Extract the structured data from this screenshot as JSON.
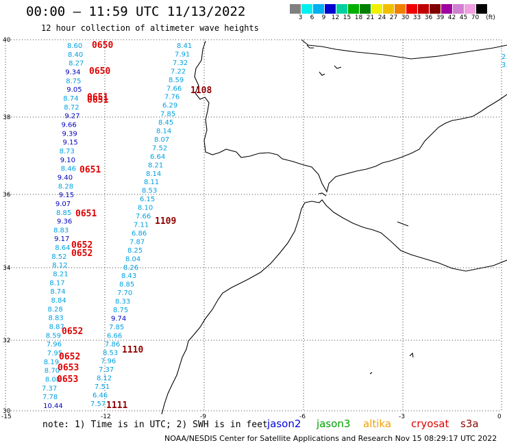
{
  "title": "00:00 – 11:59 UTC 11/13/2022",
  "subtitle": "12 hour collection of altimeter wave heights",
  "scale": {
    "unit": "(ft)",
    "labels": [
      "3",
      "6",
      "9",
      "12",
      "15",
      "18",
      "21",
      "24",
      "27",
      "30",
      "33",
      "36",
      "39",
      "42",
      "45",
      "70"
    ],
    "colors": [
      "#808080",
      "#00f0f0",
      "#00b0f0",
      "#0000d0",
      "#00d0a0",
      "#00b000",
      "#008000",
      "#f0f000",
      "#f0c000",
      "#f08000",
      "#f00000",
      "#c00000",
      "#800000",
      "#a000a0",
      "#d080d0",
      "#f0a0e0",
      "#000000"
    ]
  },
  "axes": {
    "lat_labels": [
      "40",
      "38",
      "36",
      "34",
      "32",
      "30"
    ],
    "lon_labels": [
      "-15",
      "-12",
      "-9",
      "-6",
      "-3",
      "0"
    ]
  },
  "passes": [
    {
      "label": "0650",
      "color": "#e00000"
    },
    {
      "label": "0650",
      "color": "#e00000"
    },
    {
      "label": "0651",
      "color": "#e00000"
    },
    {
      "label": "0651",
      "color": "#e00000"
    },
    {
      "label": "0651",
      "color": "#e00000"
    },
    {
      "label": "0651",
      "color": "#e00000"
    },
    {
      "label": "0652",
      "color": "#e00000"
    },
    {
      "label": "0652",
      "color": "#e00000"
    },
    {
      "label": "0652",
      "color": "#e00000"
    },
    {
      "label": "0652",
      "color": "#e00000"
    },
    {
      "label": "0653",
      "color": "#e00000"
    },
    {
      "label": "0653",
      "color": "#e00000"
    },
    {
      "label": "1108",
      "color": "#900000"
    },
    {
      "label": "1109",
      "color": "#900000"
    },
    {
      "label": "1110",
      "color": "#900000"
    },
    {
      "label": "1111",
      "color": "#900000"
    }
  ],
  "track_west": [
    {
      "v": "8.60",
      "c": "#00a0e0"
    },
    {
      "v": "8.40",
      "c": "#00a0e0"
    },
    {
      "v": "8.27",
      "c": "#00a0e0"
    },
    {
      "v": "9.34",
      "c": "#0000c0"
    },
    {
      "v": "8.75",
      "c": "#00a0e0"
    },
    {
      "v": "9.05",
      "c": "#0000c0"
    },
    {
      "v": "8.74",
      "c": "#00a0e0"
    },
    {
      "v": "8.72",
      "c": "#00a0e0"
    },
    {
      "v": "9.27",
      "c": "#0000c0"
    },
    {
      "v": "9.66",
      "c": "#0000c0"
    },
    {
      "v": "9.39",
      "c": "#0000c0"
    },
    {
      "v": "9.15",
      "c": "#0000c0"
    },
    {
      "v": "8.73",
      "c": "#00a0e0"
    },
    {
      "v": "9.10",
      "c": "#0000c0"
    },
    {
      "v": "8.46",
      "c": "#00a0e0"
    },
    {
      "v": "9.40",
      "c": "#0000c0"
    },
    {
      "v": "8.28",
      "c": "#00a0e0"
    },
    {
      "v": "9.15",
      "c": "#0000c0"
    },
    {
      "v": "9.07",
      "c": "#0000c0"
    },
    {
      "v": "8.85",
      "c": "#00a0e0"
    },
    {
      "v": "9.36",
      "c": "#0000c0"
    },
    {
      "v": "8.83",
      "c": "#00a0e0"
    },
    {
      "v": "9.17",
      "c": "#0000c0"
    },
    {
      "v": "8.64",
      "c": "#00a0e0"
    },
    {
      "v": "8.52",
      "c": "#00a0e0"
    },
    {
      "v": "8.12",
      "c": "#00a0e0"
    },
    {
      "v": "8.21",
      "c": "#00a0e0"
    },
    {
      "v": "8.17",
      "c": "#00a0e0"
    },
    {
      "v": "8.74",
      "c": "#00a0e0"
    },
    {
      "v": "8.84",
      "c": "#00a0e0"
    },
    {
      "v": "8.28",
      "c": "#00a0e0"
    },
    {
      "v": "8.83",
      "c": "#00a0e0"
    },
    {
      "v": "8.87",
      "c": "#00a0e0"
    },
    {
      "v": "8.59",
      "c": "#00a0e0"
    },
    {
      "v": "7.96",
      "c": "#00a0e0"
    },
    {
      "v": "7.95",
      "c": "#00a0e0"
    },
    {
      "v": "8.19",
      "c": "#00a0e0"
    },
    {
      "v": "8.70",
      "c": "#00a0e0"
    },
    {
      "v": "8.08",
      "c": "#00a0e0"
    },
    {
      "v": "7.37",
      "c": "#00a0e0"
    },
    {
      "v": "7.78",
      "c": "#00a0e0"
    },
    {
      "v": "10.44",
      "c": "#0000c0"
    }
  ],
  "track_east": [
    {
      "v": "8.41",
      "c": "#00a0e0"
    },
    {
      "v": "7.91",
      "c": "#00a0e0"
    },
    {
      "v": "7.32",
      "c": "#00a0e0"
    },
    {
      "v": "7.22",
      "c": "#00a0e0"
    },
    {
      "v": "8.59",
      "c": "#00a0e0"
    },
    {
      "v": "7.66",
      "c": "#00a0e0"
    },
    {
      "v": "7.76",
      "c": "#00a0e0"
    },
    {
      "v": "6.29",
      "c": "#00a0e0"
    },
    {
      "v": "7.85",
      "c": "#00a0e0"
    },
    {
      "v": "8.45",
      "c": "#00a0e0"
    },
    {
      "v": "8.14",
      "c": "#00a0e0"
    },
    {
      "v": "8.07",
      "c": "#00a0e0"
    },
    {
      "v": "7.52",
      "c": "#00a0e0"
    },
    {
      "v": "6.64",
      "c": "#00a0e0"
    },
    {
      "v": "8.21",
      "c": "#00a0e0"
    },
    {
      "v": "8.14",
      "c": "#00a0e0"
    },
    {
      "v": "8.11",
      "c": "#00a0e0"
    },
    {
      "v": "8.53",
      "c": "#00a0e0"
    },
    {
      "v": "6.15",
      "c": "#00a0e0"
    },
    {
      "v": "8.10",
      "c": "#00a0e0"
    },
    {
      "v": "7.66",
      "c": "#00a0e0"
    },
    {
      "v": "7.11",
      "c": "#00a0e0"
    },
    {
      "v": "6.86",
      "c": "#00a0e0"
    },
    {
      "v": "7.87",
      "c": "#00a0e0"
    },
    {
      "v": "8.25",
      "c": "#00a0e0"
    },
    {
      "v": "8.04",
      "c": "#00a0e0"
    },
    {
      "v": "8.26",
      "c": "#00a0e0"
    },
    {
      "v": "8.43",
      "c": "#00a0e0"
    },
    {
      "v": "8.85",
      "c": "#00a0e0"
    },
    {
      "v": "7.70",
      "c": "#00a0e0"
    },
    {
      "v": "8.33",
      "c": "#00a0e0"
    },
    {
      "v": "8.75",
      "c": "#00a0e0"
    },
    {
      "v": "9.74",
      "c": "#0000c0"
    },
    {
      "v": "7.85",
      "c": "#00a0e0"
    },
    {
      "v": "6.66",
      "c": "#00a0e0"
    },
    {
      "v": "7.86",
      "c": "#00a0e0"
    },
    {
      "v": "8.53",
      "c": "#00a0e0"
    },
    {
      "v": "7.96",
      "c": "#00a0e0"
    },
    {
      "v": "7.37",
      "c": "#00a0e0"
    },
    {
      "v": "8.12",
      "c": "#00a0e0"
    },
    {
      "v": "7.51",
      "c": "#00a0e0"
    },
    {
      "v": "6.46",
      "c": "#00a0e0"
    },
    {
      "v": "7.57",
      "c": "#00a0e0"
    }
  ],
  "edge_values": [
    {
      "v": "2.",
      "c": "#00a0e0"
    },
    {
      "v": "3.",
      "c": "#00a0e0"
    }
  ],
  "footer": {
    "note": "note: 1) Time is in UTC; 2) SWH is in feet",
    "legend": [
      {
        "label": "jason2",
        "color": "#0000e0"
      },
      {
        "label": "jason3",
        "color": "#00a000"
      },
      {
        "label": "altika",
        "color": "#f0a000"
      },
      {
        "label": "cryosat",
        "color": "#e00000"
      },
      {
        "label": "s3a",
        "color": "#900000"
      }
    ],
    "credit": "NOAA/NESDIS Center for Satellite Applications and Research    Nov 15 08:29:17 UTC 2022"
  }
}
